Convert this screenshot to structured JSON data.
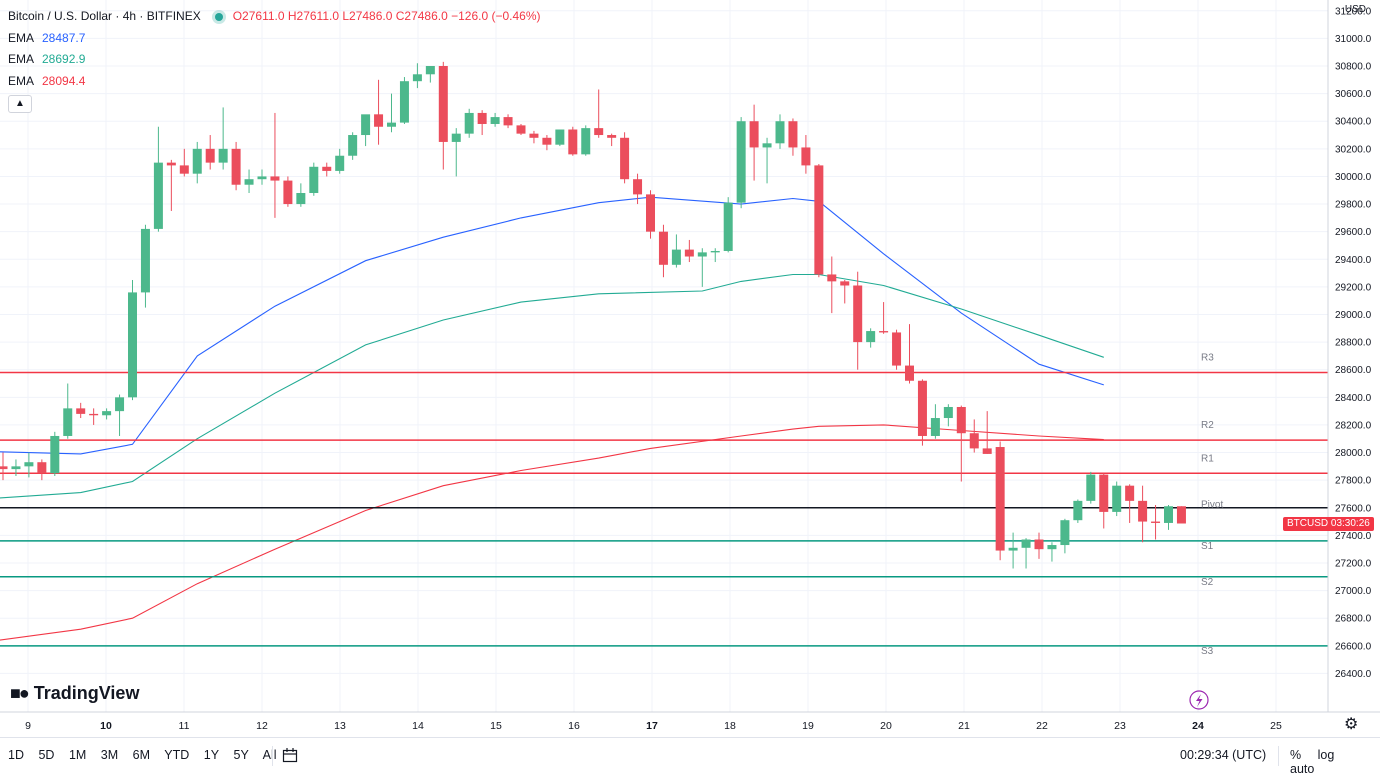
{
  "legend": {
    "title": "Bitcoin / U.S. Dollar · 4h · BITFINEX",
    "ohlc": "O27611.0 H27611.0 L27486.0 C27486.0 −126.0 (−0.46%)",
    "ema": [
      {
        "label": "EMA",
        "value": "28487.7",
        "color": "#2962ff"
      },
      {
        "label": "EMA",
        "value": "28692.9",
        "color": "#22ab94"
      },
      {
        "label": "EMA",
        "value": "28094.4",
        "color": "#f23645"
      }
    ],
    "collapse_icon": "chevron-up-icon"
  },
  "currency": "USD",
  "price_tag": {
    "symbol": "BTCUSD",
    "countdown": "03:30:26"
  },
  "watermark": "TradingView",
  "toolbar": {
    "ranges": [
      "1D",
      "5D",
      "1M",
      "3M",
      "6M",
      "YTD",
      "1Y",
      "5Y",
      "All"
    ],
    "calendar_icon": "calendar-goto-icon",
    "clock": "00:29:34 (UTC)",
    "percent_label": "%",
    "log_label": "log",
    "auto_label": "auto"
  },
  "chart_data": {
    "type": "candlestick",
    "symbol": "BTCUSD",
    "exchange": "BITFINEX",
    "interval": "4h",
    "ylim": [
      26250,
      31300
    ],
    "y_ticks": [
      "31200.0",
      "31000.0",
      "30800.0",
      "30600.0",
      "30400.0",
      "30200.0",
      "30000.0",
      "29800.0",
      "29600.0",
      "29400.0",
      "29200.0",
      "29000.0",
      "28800.0",
      "28600.0",
      "28400.0",
      "28200.0",
      "28000.0",
      "27800.0",
      "27600.0",
      "27400.0",
      "27200.0",
      "27000.0",
      "26800.0",
      "26600.0",
      "26400.0"
    ],
    "x_ticks": [
      "9",
      "10",
      "11",
      "12",
      "13",
      "14",
      "15",
      "16",
      "17",
      "18",
      "19",
      "20",
      "21",
      "22",
      "23",
      "24",
      "25"
    ],
    "last_price": 27486.0,
    "candles": [
      {
        "o": 27900,
        "h": 28000,
        "l": 27800,
        "c": 27880
      },
      {
        "o": 27880,
        "h": 27950,
        "l": 27830,
        "c": 27900
      },
      {
        "o": 27900,
        "h": 28000,
        "l": 27820,
        "c": 27930
      },
      {
        "o": 27930,
        "h": 27950,
        "l": 27800,
        "c": 27850
      },
      {
        "o": 27850,
        "h": 28150,
        "l": 27830,
        "c": 28120
      },
      {
        "o": 28120,
        "h": 28500,
        "l": 28100,
        "c": 28320
      },
      {
        "o": 28320,
        "h": 28360,
        "l": 28250,
        "c": 28280
      },
      {
        "o": 28280,
        "h": 28320,
        "l": 28200,
        "c": 28270
      },
      {
        "o": 28270,
        "h": 28320,
        "l": 28240,
        "c": 28300
      },
      {
        "o": 28300,
        "h": 28420,
        "l": 28120,
        "c": 28400
      },
      {
        "o": 28400,
        "h": 29250,
        "l": 28380,
        "c": 29160
      },
      {
        "o": 29160,
        "h": 29650,
        "l": 29050,
        "c": 29620
      },
      {
        "o": 29620,
        "h": 30360,
        "l": 29600,
        "c": 30100
      },
      {
        "o": 30100,
        "h": 30120,
        "l": 29750,
        "c": 30080
      },
      {
        "o": 30080,
        "h": 30200,
        "l": 30000,
        "c": 30020
      },
      {
        "o": 30020,
        "h": 30250,
        "l": 29950,
        "c": 30200
      },
      {
        "o": 30200,
        "h": 30300,
        "l": 30050,
        "c": 30100
      },
      {
        "o": 30100,
        "h": 30500,
        "l": 30050,
        "c": 30200
      },
      {
        "o": 30200,
        "h": 30250,
        "l": 29900,
        "c": 29940
      },
      {
        "o": 29940,
        "h": 30050,
        "l": 29880,
        "c": 29980
      },
      {
        "o": 29980,
        "h": 30050,
        "l": 29940,
        "c": 30000
      },
      {
        "o": 30000,
        "h": 30460,
        "l": 29700,
        "c": 29970
      },
      {
        "o": 29970,
        "h": 30000,
        "l": 29780,
        "c": 29800
      },
      {
        "o": 29800,
        "h": 29950,
        "l": 29780,
        "c": 29880
      },
      {
        "o": 29880,
        "h": 30100,
        "l": 29860,
        "c": 30070
      },
      {
        "o": 30070,
        "h": 30100,
        "l": 30000,
        "c": 30040
      },
      {
        "o": 30040,
        "h": 30200,
        "l": 30020,
        "c": 30150
      },
      {
        "o": 30150,
        "h": 30320,
        "l": 30120,
        "c": 30300
      },
      {
        "o": 30300,
        "h": 30400,
        "l": 30220,
        "c": 30450
      },
      {
        "o": 30450,
        "h": 30700,
        "l": 30230,
        "c": 30360
      },
      {
        "o": 30360,
        "h": 30600,
        "l": 30320,
        "c": 30390
      },
      {
        "o": 30390,
        "h": 30720,
        "l": 30380,
        "c": 30690
      },
      {
        "o": 30690,
        "h": 30820,
        "l": 30640,
        "c": 30740
      },
      {
        "o": 30740,
        "h": 30790,
        "l": 30680,
        "c": 30800
      },
      {
        "o": 30800,
        "h": 30830,
        "l": 30050,
        "c": 30250
      },
      {
        "o": 30250,
        "h": 30350,
        "l": 30000,
        "c": 30310
      },
      {
        "o": 30310,
        "h": 30490,
        "l": 30280,
        "c": 30460
      },
      {
        "o": 30460,
        "h": 30480,
        "l": 30300,
        "c": 30380
      },
      {
        "o": 30380,
        "h": 30460,
        "l": 30360,
        "c": 30430
      },
      {
        "o": 30430,
        "h": 30450,
        "l": 30350,
        "c": 30370
      },
      {
        "o": 30370,
        "h": 30380,
        "l": 30300,
        "c": 30310
      },
      {
        "o": 30310,
        "h": 30330,
        "l": 30240,
        "c": 30280
      },
      {
        "o": 30280,
        "h": 30300,
        "l": 30190,
        "c": 30230
      },
      {
        "o": 30230,
        "h": 30340,
        "l": 30220,
        "c": 30340
      },
      {
        "o": 30340,
        "h": 30360,
        "l": 30150,
        "c": 30160
      },
      {
        "o": 30160,
        "h": 30370,
        "l": 30150,
        "c": 30350
      },
      {
        "o": 30350,
        "h": 30630,
        "l": 30280,
        "c": 30300
      },
      {
        "o": 30300,
        "h": 30310,
        "l": 30220,
        "c": 30280
      },
      {
        "o": 30280,
        "h": 30320,
        "l": 29950,
        "c": 29980
      },
      {
        "o": 29980,
        "h": 30020,
        "l": 29800,
        "c": 29870
      },
      {
        "o": 29870,
        "h": 29900,
        "l": 29550,
        "c": 29600
      },
      {
        "o": 29600,
        "h": 29650,
        "l": 29270,
        "c": 29360
      },
      {
        "o": 29360,
        "h": 29580,
        "l": 29340,
        "c": 29470
      },
      {
        "o": 29470,
        "h": 29540,
        "l": 29380,
        "c": 29420
      },
      {
        "o": 29420,
        "h": 29480,
        "l": 29200,
        "c": 29450
      },
      {
        "o": 29450,
        "h": 29480,
        "l": 29380,
        "c": 29460
      },
      {
        "o": 29460,
        "h": 29850,
        "l": 29450,
        "c": 29810
      },
      {
        "o": 29810,
        "h": 30430,
        "l": 29770,
        "c": 30400
      },
      {
        "o": 30400,
        "h": 30520,
        "l": 29970,
        "c": 30210
      },
      {
        "o": 30210,
        "h": 30280,
        "l": 29950,
        "c": 30240
      },
      {
        "o": 30240,
        "h": 30450,
        "l": 30200,
        "c": 30400
      },
      {
        "o": 30400,
        "h": 30420,
        "l": 30150,
        "c": 30210
      },
      {
        "o": 30210,
        "h": 30300,
        "l": 30020,
        "c": 30080
      },
      {
        "o": 30080,
        "h": 30090,
        "l": 29270,
        "c": 29290
      },
      {
        "o": 29290,
        "h": 29420,
        "l": 29010,
        "c": 29240
      },
      {
        "o": 29240,
        "h": 29250,
        "l": 29080,
        "c": 29210
      },
      {
        "o": 29210,
        "h": 29310,
        "l": 28600,
        "c": 28800
      },
      {
        "o": 28800,
        "h": 28900,
        "l": 28760,
        "c": 28880
      },
      {
        "o": 28880,
        "h": 29090,
        "l": 28860,
        "c": 28870
      },
      {
        "o": 28870,
        "h": 28890,
        "l": 28600,
        "c": 28630
      },
      {
        "o": 28630,
        "h": 28930,
        "l": 28500,
        "c": 28520
      },
      {
        "o": 28520,
        "h": 28530,
        "l": 28050,
        "c": 28120
      },
      {
        "o": 28120,
        "h": 28350,
        "l": 28100,
        "c": 28250
      },
      {
        "o": 28250,
        "h": 28350,
        "l": 28190,
        "c": 28330
      },
      {
        "o": 28330,
        "h": 28340,
        "l": 27790,
        "c": 28140
      },
      {
        "o": 28140,
        "h": 28240,
        "l": 28000,
        "c": 28030
      },
      {
        "o": 28030,
        "h": 28300,
        "l": 27990,
        "c": 27990
      },
      {
        "o": 28040,
        "h": 28080,
        "l": 27220,
        "c": 27290
      },
      {
        "o": 27290,
        "h": 27420,
        "l": 27160,
        "c": 27310
      },
      {
        "o": 27310,
        "h": 27380,
        "l": 27160,
        "c": 27370
      },
      {
        "o": 27370,
        "h": 27420,
        "l": 27230,
        "c": 27300
      },
      {
        "o": 27300,
        "h": 27350,
        "l": 27210,
        "c": 27330
      },
      {
        "o": 27330,
        "h": 27520,
        "l": 27270,
        "c": 27510
      },
      {
        "o": 27510,
        "h": 27660,
        "l": 27490,
        "c": 27650
      },
      {
        "o": 27650,
        "h": 27860,
        "l": 27630,
        "c": 27840
      },
      {
        "o": 27840,
        "h": 27850,
        "l": 27450,
        "c": 27570
      },
      {
        "o": 27570,
        "h": 27790,
        "l": 27540,
        "c": 27760
      },
      {
        "o": 27760,
        "h": 27770,
        "l": 27490,
        "c": 27650
      },
      {
        "o": 27650,
        "h": 27760,
        "l": 27350,
        "c": 27500
      },
      {
        "o": 27500,
        "h": 27620,
        "l": 27370,
        "c": 27490
      },
      {
        "o": 27490,
        "h": 27620,
        "l": 27440,
        "c": 27611
      },
      {
        "o": 27611,
        "h": 27611,
        "l": 27486,
        "c": 27486
      }
    ],
    "ema_series": [
      {
        "name": "EMA",
        "color": "#2962ff",
        "points": [
          [
            -2,
            28010
          ],
          [
            6,
            27990
          ],
          [
            10,
            28060
          ],
          [
            15,
            28700
          ],
          [
            21,
            29060
          ],
          [
            28,
            29390
          ],
          [
            34,
            29560
          ],
          [
            40,
            29700
          ],
          [
            46,
            29810
          ],
          [
            50,
            29850
          ],
          [
            57,
            29800
          ],
          [
            61,
            29840
          ],
          [
            63,
            29820
          ],
          [
            68,
            29440
          ],
          [
            74,
            29010
          ],
          [
            80,
            28640
          ],
          [
            85,
            28490
          ]
        ]
      },
      {
        "name": "EMA",
        "color": "#22ab94",
        "points": [
          [
            -2,
            27660
          ],
          [
            6,
            27710
          ],
          [
            10,
            27790
          ],
          [
            15,
            28100
          ],
          [
            21,
            28430
          ],
          [
            28,
            28780
          ],
          [
            34,
            28960
          ],
          [
            40,
            29090
          ],
          [
            46,
            29150
          ],
          [
            54,
            29170
          ],
          [
            57,
            29240
          ],
          [
            61,
            29290
          ],
          [
            63,
            29290
          ],
          [
            68,
            29210
          ],
          [
            74,
            29040
          ],
          [
            80,
            28850
          ],
          [
            85,
            28690
          ]
        ]
      },
      {
        "name": "EMA",
        "color": "#f23645",
        "points": [
          [
            -2,
            26620
          ],
          [
            6,
            26720
          ],
          [
            10,
            26800
          ],
          [
            15,
            27050
          ],
          [
            21,
            27300
          ],
          [
            28,
            27580
          ],
          [
            34,
            27760
          ],
          [
            40,
            27870
          ],
          [
            46,
            27960
          ],
          [
            50,
            28030
          ],
          [
            57,
            28120
          ],
          [
            61,
            28170
          ],
          [
            63,
            28190
          ],
          [
            68,
            28200
          ],
          [
            74,
            28160
          ],
          [
            80,
            28120
          ],
          [
            85,
            28094
          ]
        ]
      }
    ],
    "pivot_levels": [
      {
        "name": "R3",
        "value": 28580,
        "color": "#f23645"
      },
      {
        "name": "R2",
        "value": 28090,
        "color": "#f23645"
      },
      {
        "name": "R1",
        "value": 27850,
        "color": "#f23645"
      },
      {
        "name": "Pivot",
        "value": 27600,
        "color": "#131722"
      },
      {
        "name": "S1",
        "value": 27360,
        "color": "#089981"
      },
      {
        "name": "S2",
        "value": 27100,
        "color": "#089981"
      },
      {
        "name": "S3",
        "value": 26600,
        "color": "#089981"
      }
    ],
    "colors": {
      "up": "#4cb88c",
      "down": "#eb4d5c",
      "grid": "#f0f3fa"
    }
  }
}
